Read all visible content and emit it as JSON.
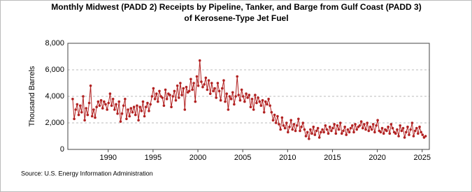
{
  "chart_data": {
    "type": "line",
    "title": [
      "Monthly Midwest (PADD 2) Receipts by Pipeline, Tanker, and Barge from Gulf Coast (PADD 3)",
      "of Kerosene-Type Jet Fuel"
    ],
    "ylabel": "Thousand Barrels",
    "source": "Source: U.S. Energy Information Administration",
    "color": "#b22222",
    "xlim": [
      1985.5,
      2025.8
    ],
    "xticks": [
      1990,
      1995,
      2000,
      2005,
      2010,
      2015,
      2020,
      2025
    ],
    "ylim": [
      0,
      8000
    ],
    "yticks": [
      0,
      {
        "value": 2000,
        "label": "2,000"
      },
      {
        "value": 4000,
        "label": "4,000"
      },
      {
        "value": 6000,
        "label": "6,000"
      },
      {
        "value": 8000,
        "label": "8,000"
      }
    ],
    "grid": true,
    "x": [
      1986.04,
      1986.21,
      1986.38,
      1986.54,
      1986.71,
      1986.88,
      1987.04,
      1987.21,
      1987.38,
      1987.54,
      1987.71,
      1987.88,
      1988.04,
      1988.21,
      1988.38,
      1988.54,
      1988.71,
      1988.88,
      1989.04,
      1989.21,
      1989.38,
      1989.54,
      1989.71,
      1989.88,
      1990.04,
      1990.21,
      1990.38,
      1990.54,
      1990.71,
      1990.88,
      1991.04,
      1991.21,
      1991.38,
      1991.54,
      1991.71,
      1991.88,
      1992.04,
      1992.21,
      1992.38,
      1992.54,
      1992.71,
      1992.88,
      1993.04,
      1993.21,
      1993.38,
      1993.54,
      1993.71,
      1993.88,
      1994.04,
      1994.21,
      1994.38,
      1994.54,
      1994.71,
      1994.88,
      1995.04,
      1995.21,
      1995.38,
      1995.54,
      1995.71,
      1995.88,
      1996.04,
      1996.21,
      1996.38,
      1996.54,
      1996.71,
      1996.88,
      1997.04,
      1997.21,
      1997.38,
      1997.54,
      1997.71,
      1997.88,
      1998.04,
      1998.21,
      1998.38,
      1998.54,
      1998.71,
      1998.88,
      1999.04,
      1999.21,
      1999.38,
      1999.54,
      1999.71,
      1999.88,
      2000.04,
      2000.21,
      2000.38,
      2000.54,
      2000.71,
      2000.88,
      2001.04,
      2001.21,
      2001.38,
      2001.54,
      2001.71,
      2001.88,
      2002.04,
      2002.21,
      2002.38,
      2002.54,
      2002.71,
      2002.88,
      2003.04,
      2003.21,
      2003.38,
      2003.54,
      2003.71,
      2003.88,
      2004.04,
      2004.21,
      2004.38,
      2004.54,
      2004.71,
      2004.88,
      2005.04,
      2005.21,
      2005.38,
      2005.54,
      2005.71,
      2005.88,
      2006.04,
      2006.21,
      2006.38,
      2006.54,
      2006.71,
      2006.88,
      2007.04,
      2007.21,
      2007.38,
      2007.54,
      2007.71,
      2007.88,
      2008.04,
      2008.21,
      2008.38,
      2008.54,
      2008.71,
      2008.88,
      2009.04,
      2009.21,
      2009.38,
      2009.54,
      2009.71,
      2009.88,
      2010.04,
      2010.21,
      2010.38,
      2010.54,
      2010.71,
      2010.88,
      2011.04,
      2011.21,
      2011.38,
      2011.54,
      2011.71,
      2011.88,
      2012.04,
      2012.21,
      2012.38,
      2012.54,
      2012.71,
      2012.88,
      2013.04,
      2013.21,
      2013.38,
      2013.54,
      2013.71,
      2013.88,
      2014.04,
      2014.21,
      2014.38,
      2014.54,
      2014.71,
      2014.88,
      2015.04,
      2015.21,
      2015.38,
      2015.54,
      2015.71,
      2015.88,
      2016.04,
      2016.21,
      2016.38,
      2016.54,
      2016.71,
      2016.88,
      2017.04,
      2017.21,
      2017.38,
      2017.54,
      2017.71,
      2017.88,
      2018.04,
      2018.21,
      2018.38,
      2018.54,
      2018.71,
      2018.88,
      2019.04,
      2019.21,
      2019.38,
      2019.54,
      2019.71,
      2019.88,
      2020.04,
      2020.21,
      2020.38,
      2020.54,
      2020.71,
      2020.88,
      2021.04,
      2021.21,
      2021.38,
      2021.54,
      2021.71,
      2021.88,
      2022.04,
      2022.21,
      2022.38,
      2022.54,
      2022.71,
      2022.88,
      2023.04,
      2023.21,
      2023.38,
      2023.54,
      2023.71,
      2023.88,
      2024.04,
      2024.21,
      2024.38,
      2024.54,
      2024.71,
      2024.88,
      2025.04,
      2025.21,
      2025.38
    ],
    "values": [
      3800,
      2300,
      3000,
      3400,
      2600,
      3300,
      2800,
      4000,
      2200,
      3100,
      2600,
      3500,
      4800,
      2500,
      3000,
      2400,
      3200,
      3600,
      3300,
      3700,
      3100,
      3600,
      3400,
      3000,
      3500,
      4200,
      3300,
      3800,
      3000,
      3400,
      2700,
      3600,
      2100,
      2700,
      3300,
      3800,
      2300,
      3000,
      2500,
      3100,
      2800,
      3200,
      2600,
      3300,
      2200,
      3200,
      2900,
      3600,
      2500,
      3200,
      3500,
      2900,
      3400,
      4000,
      4600,
      3800,
      4200,
      3600,
      4400,
      4000,
      3900,
      3300,
      4500,
      3800,
      4200,
      4100,
      3200,
      4000,
      4400,
      3700,
      4800,
      3900,
      5000,
      4100,
      4600,
      3000,
      4700,
      4300,
      4400,
      5300,
      4500,
      5000,
      3600,
      5500,
      4800,
      6700,
      5100,
      4700,
      4900,
      5400,
      4500,
      5200,
      4200,
      5000,
      4400,
      4600,
      3900,
      5000,
      4400,
      3700,
      4600,
      5200,
      3600,
      4200,
      3000,
      4000,
      3800,
      4300,
      3400,
      4000,
      5500,
      4100,
      3700,
      4500,
      4000,
      3600,
      4200,
      3900,
      4100,
      3200,
      3800,
      3000,
      4100,
      3500,
      3900,
      3600,
      3300,
      3700,
      2800,
      3600,
      3400,
      3800,
      3300,
      2800,
      2200,
      2600,
      2000,
      2500,
      1900,
      1500,
      2400,
      1800,
      1600,
      2000,
      1300,
      1700,
      2200,
      1500,
      1900,
      1400,
      1800,
      2300,
      1400,
      1700,
      2000,
      1500,
      1000,
      1300,
      800,
      1500,
      1200,
      1700,
      1100,
      1400,
      1600,
      900,
      1300,
      1500,
      1300,
      1800,
      1500,
      1200,
      1700,
      1400,
      1600,
      1900,
      1200,
      1800,
      1500,
      2000,
      1200,
      1400,
      1700,
      1100,
      1500,
      1300,
      1600,
      1800,
      1300,
      1900,
      1500,
      1700,
      1800,
      2100,
      1600,
      1900,
      1500,
      2000,
      1400,
      1700,
      1500,
      1900,
      1300,
      1800,
      2200,
      1400,
      1300,
      1600,
      1200,
      1500,
      1400,
      1700,
      1200,
      1900,
      1600,
      1300,
      1200,
      1500,
      1000,
      1800,
      1400,
      1600,
      900,
      1300,
      1700,
      1100,
      1500,
      2000,
      1000,
      1400,
      1600,
      1200,
      1700,
      1300,
      1100,
      900,
      1000
    ]
  }
}
